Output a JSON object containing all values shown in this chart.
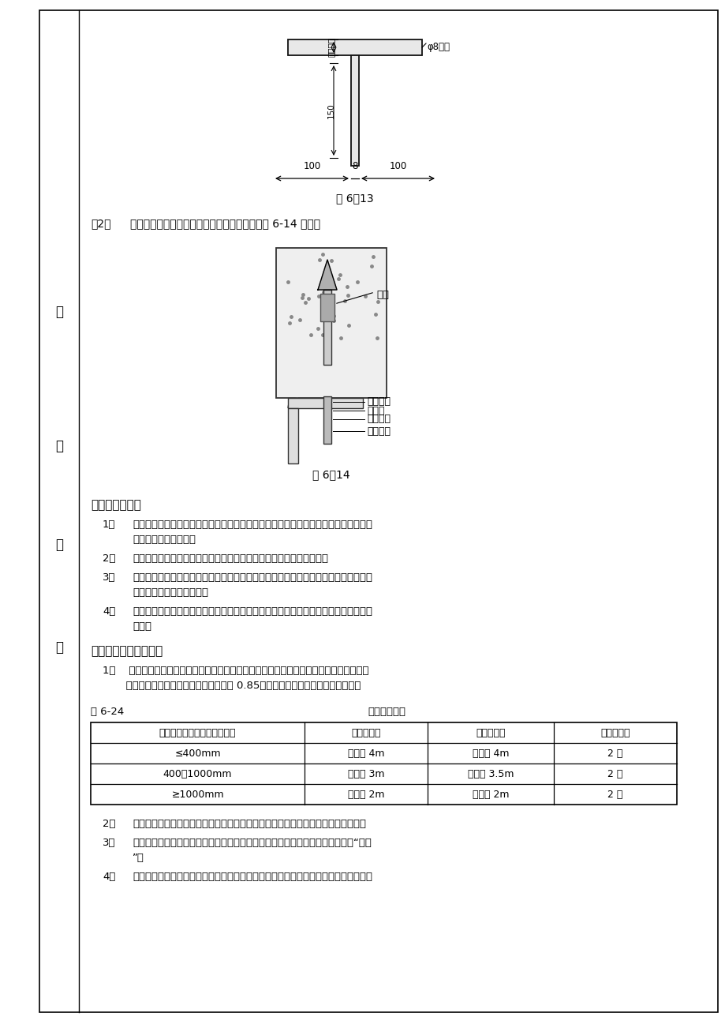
{
  "page_bg": "#ffffff",
  "fig13_caption": "图 6－13",
  "fig14_caption": "图 6－14",
  "section3_title": "（三）安装吊架",
  "section4_title": "（四）风支吊架的间距",
  "table_title_left": "表 6-24",
  "table_title_right": "支、吊架间距",
  "table_headers": [
    "圆形风直径或矩形风长边尺寸",
    "程度风间距",
    "垂直风间距",
    "最小吊架数"
  ],
  "table_rows": [
    [
      "≤400mm",
      "不大于 4m",
      "不大于 4m",
      "2 付"
    ],
    [
      "400～1000mm",
      "不大于 3m",
      "不大于 3.5m",
      "2 付"
    ],
    [
      "≥1000mm",
      "不大于 2m",
      "不大于 2m",
      "2 付"
    ]
  ],
  "text_color": "#000000",
  "border_color": "#000000",
  "font_size_body": 9.5,
  "font_size_section": 10.5,
  "font_size_caption": 9.5
}
